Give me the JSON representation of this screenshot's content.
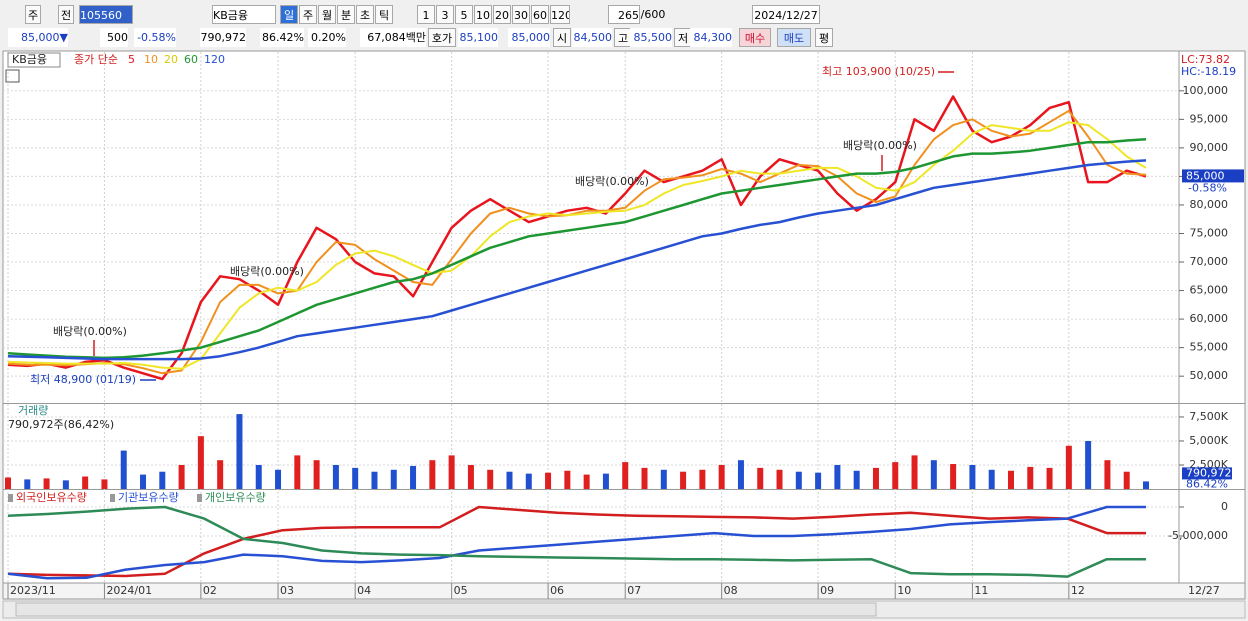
{
  "toolbar": {
    "row1": [
      "주",
      "전",
      "105560",
      "KB금융",
      "일",
      "주",
      "월",
      "분",
      "초",
      "틱",
      "1",
      "3",
      "5",
      "10",
      "20",
      "30",
      "60",
      "120",
      "265",
      "/600",
      "2024/12/27"
    ],
    "row2": [
      "85,000▼",
      "500",
      "-0.58%",
      "790,972",
      "86.42%",
      "0.20%",
      "67,084백만",
      "호가",
      "85,100",
      "85,000",
      "시",
      "84,500",
      "고",
      "85,500",
      "저",
      "84,300",
      "매수",
      "매도",
      "평"
    ]
  },
  "chart_data": [
    {
      "type": "line",
      "title": "KB금융",
      "subtitle": "종가 단순",
      "categories": [
        "2023/11",
        null,
        null,
        null,
        null,
        "2024/01",
        null,
        null,
        null,
        null,
        "02",
        null,
        null,
        null,
        "03",
        null,
        null,
        null,
        "04",
        null,
        null,
        null,
        null,
        "05",
        null,
        null,
        null,
        null,
        "06",
        null,
        null,
        null,
        "07",
        null,
        null,
        null,
        null,
        "08",
        null,
        null,
        null,
        null,
        "09",
        null,
        null,
        null,
        "10",
        null,
        null,
        null,
        "11",
        null,
        null,
        null,
        null,
        "12",
        null,
        null,
        null,
        null
      ],
      "x_end_label": "12/27",
      "series": [
        {
          "name": "5",
          "color": "#e8141e",
          "values": [
            52000,
            51800,
            52200,
            51500,
            52500,
            52800,
            51500,
            50500,
            49500,
            54000,
            63000,
            67500,
            67000,
            65000,
            62500,
            70000,
            76000,
            74000,
            70000,
            68000,
            67500,
            64000,
            70000,
            76000,
            79000,
            81000,
            79000,
            77000,
            78000,
            79000,
            79500,
            78500,
            82000,
            86000,
            84000,
            85000,
            86000,
            88000,
            80000,
            85000,
            88000,
            87000,
            86000,
            82000,
            79000,
            81000,
            84000,
            95000,
            93000,
            99000,
            93000,
            91000,
            92000,
            94000,
            97000,
            98000,
            84000,
            84000,
            86000,
            85000
          ]
        },
        {
          "name": "10",
          "color": "#f0901e",
          "values": [
            52200,
            52000,
            52000,
            51900,
            52100,
            52300,
            52100,
            51400,
            50500,
            51000,
            56000,
            63000,
            66000,
            66000,
            64500,
            65000,
            70000,
            73500,
            73000,
            70500,
            68500,
            66500,
            66000,
            70500,
            75000,
            78500,
            79500,
            78500,
            78000,
            78200,
            79000,
            79000,
            79500,
            82500,
            84500,
            84800,
            85200,
            86300,
            85500,
            84000,
            85500,
            87000,
            86800,
            85000,
            82000,
            80500,
            81500,
            87000,
            91500,
            94000,
            95000,
            93000,
            92000,
            92500,
            94500,
            96500,
            92000,
            87000,
            85500,
            85300
          ]
        },
        {
          "name": "20",
          "color": "#f0e628",
          "values": [
            52500,
            52400,
            52300,
            52200,
            52200,
            52200,
            52300,
            52000,
            51500,
            51300,
            53000,
            57500,
            62000,
            64500,
            65500,
            65000,
            66500,
            69500,
            71500,
            72000,
            71000,
            69500,
            68000,
            68500,
            71000,
            74500,
            77000,
            78000,
            78500,
            78200,
            78500,
            78800,
            79000,
            80000,
            82000,
            83500,
            84200,
            85000,
            86000,
            85500,
            85500,
            86000,
            86500,
            86500,
            85000,
            83000,
            82500,
            84000,
            87000,
            89500,
            92500,
            94000,
            93500,
            93000,
            93000,
            94500,
            94000,
            91500,
            88500,
            86500
          ]
        },
        {
          "name": "60",
          "color": "#1e9632",
          "values": [
            54000,
            53800,
            53600,
            53400,
            53300,
            53200,
            53300,
            53600,
            54000,
            54500,
            55000,
            56000,
            57000,
            58000,
            59500,
            61000,
            62500,
            63500,
            64500,
            65500,
            66500,
            67000,
            68000,
            69500,
            71000,
            72500,
            73500,
            74500,
            75000,
            75500,
            76000,
            76500,
            77000,
            78000,
            79000,
            80000,
            81000,
            82000,
            82500,
            83000,
            83500,
            84000,
            84500,
            85000,
            85500,
            85500,
            85800,
            86500,
            87500,
            88500,
            89000,
            89000,
            89200,
            89500,
            90000,
            90500,
            91000,
            91000,
            91300,
            91500
          ]
        },
        {
          "name": "120",
          "color": "#2850d2",
          "values": [
            53500,
            53400,
            53300,
            53200,
            53100,
            53000,
            53000,
            53000,
            53000,
            53000,
            53100,
            53500,
            54200,
            55000,
            56000,
            57000,
            57500,
            58000,
            58500,
            59000,
            59500,
            60000,
            60500,
            61500,
            62500,
            63500,
            64500,
            65500,
            66500,
            67500,
            68500,
            69500,
            70500,
            71500,
            72500,
            73500,
            74500,
            75000,
            75800,
            76500,
            77000,
            77800,
            78500,
            79000,
            79500,
            80000,
            81000,
            82000,
            83000,
            83500,
            84000,
            84500,
            85000,
            85500,
            86000,
            86500,
            87000,
            87300,
            87600,
            87800
          ]
        }
      ],
      "ylim": [
        45300,
        106800
      ],
      "yticks": [
        {
          "value": 50000,
          "label": "50,000"
        },
        {
          "value": 55000,
          "label": "55,000"
        },
        {
          "value": 60000,
          "label": "60,000"
        },
        {
          "value": 65000,
          "label": "65,000"
        },
        {
          "value": 70000,
          "label": "70,000"
        },
        {
          "value": 75000,
          "label": "75,000"
        },
        {
          "value": 80000,
          "label": "80,000"
        },
        {
          "value": 85000,
          "label": "85,000"
        },
        {
          "value": 90000,
          "label": "90,000"
        },
        {
          "value": 95000,
          "label": "95,000"
        },
        {
          "value": 100000,
          "label": "100,000"
        }
      ],
      "grid": true,
      "annotations": [
        "배당락(0.00%)",
        "배당락(0.00%)",
        "배당락(0.00%)",
        "배당락(0.00%)",
        "최고 103,900 (10/25)",
        "최저 48,900 (01/19)"
      ],
      "right_labels": [
        "LC:73.82",
        "HC:-18.19"
      ],
      "last_labels": [
        "85,000",
        "-0.58%"
      ]
    },
    {
      "type": "bar",
      "title": "거래량",
      "subtitle": "790,972주(86,42%)",
      "values": [
        1200000,
        1000000,
        1100000,
        900000,
        1300000,
        1000000,
        4000000,
        1500000,
        1800000,
        2500000,
        5500000,
        3000000,
        7800000,
        2500000,
        2000000,
        3500000,
        3000000,
        2500000,
        2200000,
        1800000,
        2000000,
        2400000,
        3000000,
        3500000,
        2500000,
        2000000,
        1800000,
        1600000,
        1700000,
        1900000,
        1500000,
        1600000,
        2800000,
        2200000,
        2000000,
        1800000,
        2000000,
        2500000,
        3000000,
        2200000,
        2000000,
        1800000,
        1700000,
        2500000,
        1900000,
        2200000,
        2800000,
        3500000,
        3000000,
        2600000,
        2500000,
        2000000,
        1900000,
        2300000,
        2200000,
        4500000,
        5000000,
        3000000,
        1800000,
        790972
      ],
      "up_color": "#e0201f",
      "down_color": "#2050d0",
      "ylim": [
        0,
        8850000
      ],
      "yticks": [
        {
          "value": 2500000,
          "label": "2,500K"
        },
        {
          "value": 5000000,
          "label": "5,000K"
        },
        {
          "value": 7500000,
          "label": "7,500K"
        }
      ],
      "last_labels": [
        "790,972",
        "86.42%"
      ]
    },
    {
      "type": "line",
      "series": [
        {
          "name": "외국인보유수량",
          "color": "#d21e1e",
          "values": [
            -11500000,
            -11700000,
            -11800000,
            -11900000,
            -11500000,
            -8000000,
            -5500000,
            -4000000,
            -3600000,
            -3500000,
            -3500000,
            -3500000,
            0,
            -500000,
            -1000000,
            -1300000,
            -1500000,
            -1600000,
            -1700000,
            -1800000,
            -2000000,
            -1700000,
            -1300000,
            -1000000,
            -1500000,
            -2000000,
            -1800000,
            -2000000,
            -4500000,
            -4500000
          ]
        },
        {
          "name": "기관보유수량",
          "color": "#2850d2",
          "values": [
            -11500000,
            -12300000,
            -12200000,
            -10800000,
            -10000000,
            -9500000,
            -8200000,
            -8500000,
            -9300000,
            -9500000,
            -9200000,
            -8800000,
            -7500000,
            -7000000,
            -6500000,
            -6000000,
            -5500000,
            -5000000,
            -4500000,
            -5000000,
            -5000000,
            -4700000,
            -4300000,
            -3800000,
            -3000000,
            -2600000,
            -2300000,
            -2000000,
            0,
            0
          ]
        },
        {
          "name": "개인보유수량",
          "color": "#2e8b57",
          "values": [
            -1500000,
            -1200000,
            -800000,
            -300000,
            0,
            -2000000,
            -5500000,
            -6200000,
            -7500000,
            -8000000,
            -8200000,
            -8300000,
            -8500000,
            -8600000,
            -8700000,
            -8800000,
            -8900000,
            -9000000,
            -9000000,
            -9100000,
            -9200000,
            -9100000,
            -9000000,
            -11400000,
            -11600000,
            -11600000,
            -11700000,
            -12000000,
            -9000000,
            -9000000
          ]
        }
      ],
      "ylim": [
        -12930000,
        2930000
      ],
      "yticks": [
        0,
        {
          "value": -5000000,
          "label": "-5,000,000"
        }
      ]
    }
  ]
}
